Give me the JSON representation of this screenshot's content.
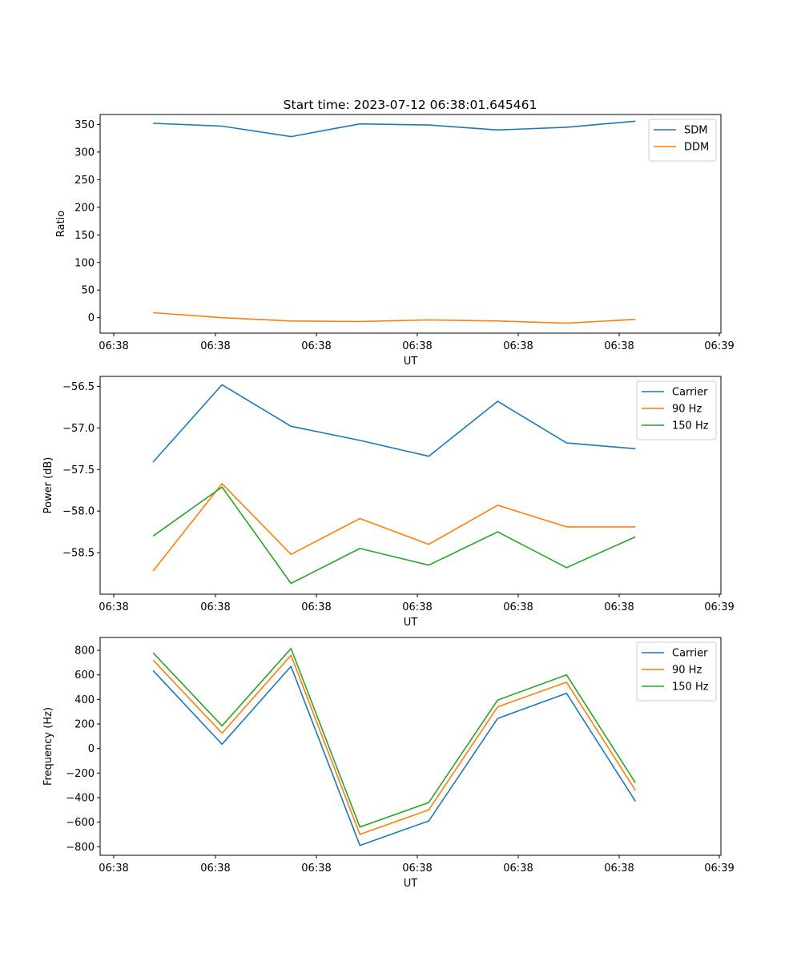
{
  "title": "Start time: 2023-07-12 06:38:01.645461",
  "chart_data": [
    {
      "type": "line",
      "title": "Start time: 2023-07-12 06:38:01.645461",
      "xlabel": "UT",
      "ylabel": "Ratio",
      "x_tick_labels": [
        "06:38",
        "06:38",
        "06:38",
        "06:38",
        "06:38",
        "06:38",
        "06:39"
      ],
      "x": [
        1,
        2,
        3,
        4,
        5,
        6,
        7,
        8
      ],
      "xlim": [
        0.23,
        9.24
      ],
      "ylim": [
        -28,
        368
      ],
      "y_ticks": [
        0,
        50,
        100,
        150,
        200,
        250,
        300,
        350
      ],
      "series": [
        {
          "name": "SDM",
          "color": "#1f77b4",
          "values": [
            352,
            347,
            328,
            351,
            349,
            340,
            345,
            356
          ]
        },
        {
          "name": "DDM",
          "color": "#ff7f0e",
          "values": [
            9,
            0,
            -6,
            -7,
            -4,
            -6,
            -10,
            -3
          ]
        }
      ],
      "legend": "top-right"
    },
    {
      "type": "line",
      "title": "",
      "xlabel": "UT",
      "ylabel": "Power (dB)",
      "x_tick_labels": [
        "06:38",
        "06:38",
        "06:38",
        "06:38",
        "06:38",
        "06:38",
        "06:39"
      ],
      "x": [
        1,
        2,
        3,
        4,
        5,
        6,
        7,
        8
      ],
      "xlim": [
        0.23,
        9.24
      ],
      "ylim": [
        -59.0,
        -56.38
      ],
      "y_ticks": [
        -58.5,
        -58.0,
        -57.5,
        -57.0,
        -56.5
      ],
      "y_tick_labels": [
        "−58.5",
        "−58.0",
        "−57.5",
        "−57.0",
        "−56.5"
      ],
      "series": [
        {
          "name": "Carrier",
          "color": "#1f77b4",
          "values": [
            -57.41,
            -56.48,
            -56.98,
            -57.15,
            -57.34,
            -56.68,
            -57.18,
            -57.25
          ]
        },
        {
          "name": "90 Hz",
          "color": "#ff7f0e",
          "values": [
            -58.72,
            -57.67,
            -58.52,
            -58.09,
            -58.4,
            -57.93,
            -58.19,
            -58.19
          ]
        },
        {
          "name": "150 Hz",
          "color": "#2ca02c",
          "values": [
            -58.3,
            -57.71,
            -58.87,
            -58.45,
            -58.65,
            -58.25,
            -58.68,
            -58.31
          ]
        }
      ],
      "legend": "top-right"
    },
    {
      "type": "line",
      "title": "",
      "xlabel": "UT",
      "ylabel": "Frequency (Hz)",
      "x_tick_labels": [
        "06:38",
        "06:38",
        "06:38",
        "06:38",
        "06:38",
        "06:38",
        "06:39"
      ],
      "x": [
        1,
        2,
        3,
        4,
        5,
        6,
        7,
        8
      ],
      "xlim": [
        0.23,
        9.24
      ],
      "ylim": [
        -870,
        905
      ],
      "y_ticks": [
        -800,
        -600,
        -400,
        -200,
        0,
        200,
        400,
        600,
        800
      ],
      "y_tick_labels": [
        "−800",
        "−600",
        "−400",
        "−200",
        "0",
        "200",
        "400",
        "600",
        "800"
      ],
      "series": [
        {
          "name": "Carrier",
          "color": "#1f77b4",
          "values": [
            635,
            35,
            670,
            -790,
            -590,
            245,
            450,
            -430
          ]
        },
        {
          "name": "90 Hz",
          "color": "#ff7f0e",
          "values": [
            720,
            125,
            760,
            -700,
            -500,
            340,
            540,
            -340
          ]
        },
        {
          "name": "150 Hz",
          "color": "#2ca02c",
          "values": [
            780,
            185,
            815,
            -640,
            -440,
            395,
            600,
            -280
          ]
        }
      ],
      "legend": "top-right"
    }
  ]
}
